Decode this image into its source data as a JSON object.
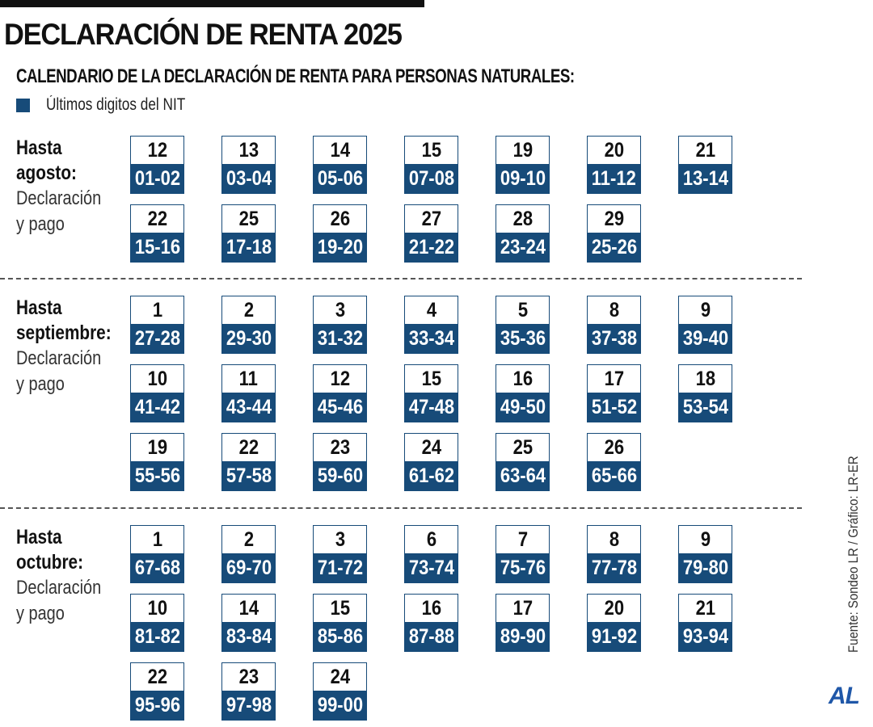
{
  "header": {
    "title": "DECLARACIÓN DE RENTA 2025",
    "subtitle": "CALENDARIO DE LA DECLARACIÓN DE RENTA PARA PERSONAS NATURALES:"
  },
  "legend": {
    "label": "Últimos digitos del NIT",
    "color": "#174b79"
  },
  "sections": [
    {
      "heading_line1": "Hasta",
      "heading_line2": "agosto:",
      "note_line1": "Declaración",
      "note_line2": "y pago",
      "rows": [
        [
          {
            "day": "12",
            "nit": "01-02"
          },
          {
            "day": "13",
            "nit": "03-04"
          },
          {
            "day": "14",
            "nit": "05-06"
          },
          {
            "day": "15",
            "nit": "07-08"
          },
          {
            "day": "19",
            "nit": "09-10"
          },
          {
            "day": "20",
            "nit": "11-12"
          },
          {
            "day": "21",
            "nit": "13-14"
          }
        ],
        [
          {
            "day": "22",
            "nit": "15-16"
          },
          {
            "day": "25",
            "nit": "17-18"
          },
          {
            "day": "26",
            "nit": "19-20"
          },
          {
            "day": "27",
            "nit": "21-22"
          },
          {
            "day": "28",
            "nit": "23-24"
          },
          {
            "day": "29",
            "nit": "25-26"
          }
        ]
      ]
    },
    {
      "heading_line1": "Hasta",
      "heading_line2": "septiembre:",
      "note_line1": "Declaración",
      "note_line2": "y pago",
      "rows": [
        [
          {
            "day": "1",
            "nit": "27-28"
          },
          {
            "day": "2",
            "nit": "29-30"
          },
          {
            "day": "3",
            "nit": "31-32"
          },
          {
            "day": "4",
            "nit": "33-34"
          },
          {
            "day": "5",
            "nit": "35-36"
          },
          {
            "day": "8",
            "nit": "37-38"
          },
          {
            "day": "9",
            "nit": "39-40"
          }
        ],
        [
          {
            "day": "10",
            "nit": "41-42"
          },
          {
            "day": "11",
            "nit": "43-44"
          },
          {
            "day": "12",
            "nit": "45-46"
          },
          {
            "day": "15",
            "nit": "47-48"
          },
          {
            "day": "16",
            "nit": "49-50"
          },
          {
            "day": "17",
            "nit": "51-52"
          },
          {
            "day": "18",
            "nit": "53-54"
          }
        ],
        [
          {
            "day": "19",
            "nit": "55-56"
          },
          {
            "day": "22",
            "nit": "57-58"
          },
          {
            "day": "23",
            "nit": "59-60"
          },
          {
            "day": "24",
            "nit": "61-62"
          },
          {
            "day": "25",
            "nit": "63-64"
          },
          {
            "day": "26",
            "nit": "65-66"
          }
        ]
      ]
    },
    {
      "heading_line1": "Hasta",
      "heading_line2": "octubre:",
      "note_line1": "Declaración",
      "note_line2": "y pago",
      "rows": [
        [
          {
            "day": "1",
            "nit": "67-68"
          },
          {
            "day": "2",
            "nit": "69-70"
          },
          {
            "day": "3",
            "nit": "71-72"
          },
          {
            "day": "6",
            "nit": "73-74"
          },
          {
            "day": "7",
            "nit": "75-76"
          },
          {
            "day": "8",
            "nit": "77-78"
          },
          {
            "day": "9",
            "nit": "79-80"
          }
        ],
        [
          {
            "day": "10",
            "nit": "81-82"
          },
          {
            "day": "14",
            "nit": "83-84"
          },
          {
            "day": "15",
            "nit": "85-86"
          },
          {
            "day": "16",
            "nit": "87-88"
          },
          {
            "day": "17",
            "nit": "89-90"
          },
          {
            "day": "20",
            "nit": "91-92"
          },
          {
            "day": "21",
            "nit": "93-94"
          }
        ],
        [
          {
            "day": "22",
            "nit": "95-96"
          },
          {
            "day": "23",
            "nit": "97-98"
          },
          {
            "day": "24",
            "nit": "99-00"
          }
        ]
      ]
    }
  ],
  "footer": {
    "source": "Fuente: Sondeo LR / Gráfico: LR-ER",
    "brand": "AL",
    "brand_color": "#1f57a8"
  }
}
